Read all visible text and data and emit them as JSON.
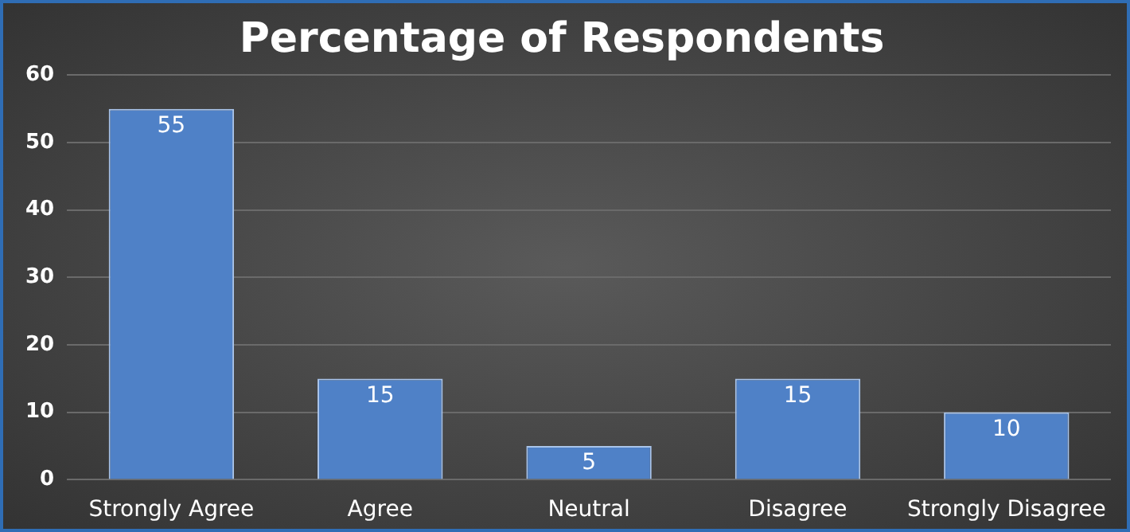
{
  "chart_data": {
    "type": "bar",
    "title": "Percentage of Respondents",
    "categories": [
      "Strongly Agree",
      "Agree",
      "Neutral",
      "Disagree",
      "Strongly Disagree"
    ],
    "values": [
      55,
      15,
      5,
      15,
      10
    ],
    "color": "#4f81c7",
    "ylim": [
      0,
      60
    ],
    "yticks": [
      0,
      10,
      20,
      30,
      40,
      50,
      60
    ],
    "grid": "y",
    "data_labels": true,
    "legend": false
  }
}
